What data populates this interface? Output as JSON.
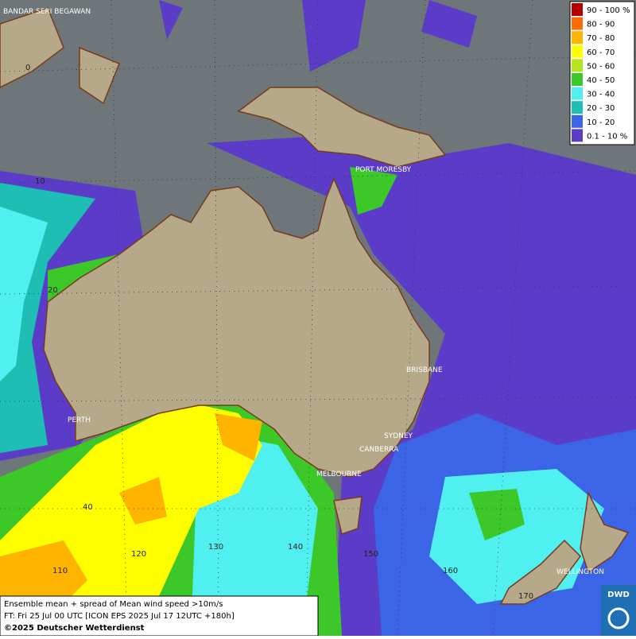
{
  "map": {
    "cities": [
      "BANDAR SERI BEGAWAN",
      "PORT MORESBY",
      "BRISBANE",
      "SYDNEY",
      "CANBERRA",
      "MELBOURNE",
      "PERTH",
      "WELLINGTON"
    ],
    "grid_labels": [
      "0",
      "10",
      "20",
      "40",
      "110",
      "120",
      "130",
      "140",
      "150",
      "160",
      "170"
    ],
    "legend": [
      {
        "label": "90 - 100 %",
        "color": "#b30000"
      },
      {
        "label": "80 - 90",
        "color": "#ff6a00"
      },
      {
        "label": "70 - 80",
        "color": "#ffb400"
      },
      {
        "label": "60 - 70",
        "color": "#ffff00"
      },
      {
        "label": "50 - 60",
        "color": "#b4e61e"
      },
      {
        "label": "40 - 50",
        "color": "#3cc828"
      },
      {
        "label": "30 - 40",
        "color": "#50f0f0"
      },
      {
        "label": "20 - 30",
        "color": "#1ebeb4"
      },
      {
        "label": "10 - 20",
        "color": "#3c64e6"
      },
      {
        "label": "0.1 - 10 %",
        "color": "#5a3cc8"
      }
    ],
    "caption": [
      "Ensemble mean + spread of Mean wind speed >10m/s",
      "FT: Fri 25 Jul 00 UTC [ICON EPS 2025 Jul 17 12UTC +180h]",
      "©2025 Deutscher Wetterdienst"
    ],
    "logo": "DWD"
  }
}
